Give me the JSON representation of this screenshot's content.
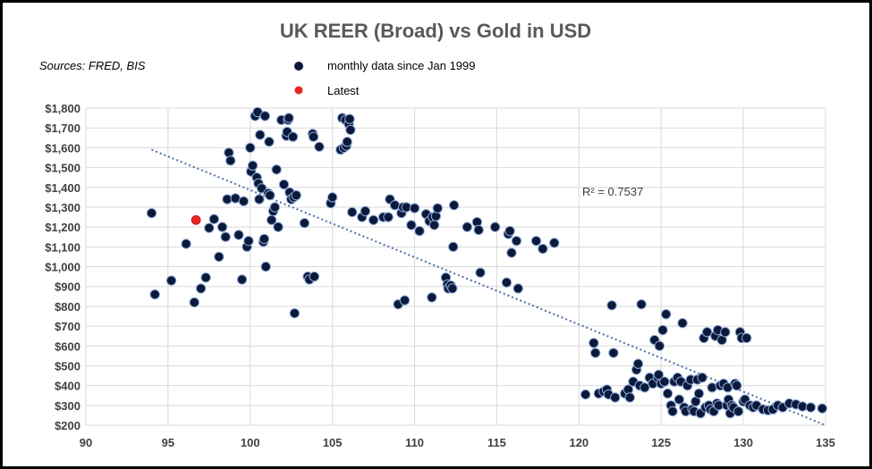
{
  "chart_data": {
    "type": "scatter",
    "title": "UK REER (Broad) vs Gold in USD",
    "source": "Sources: FRED, BIS",
    "legend": [
      {
        "label": "monthly data since Jan 1999",
        "color": "#0b1a3a"
      },
      {
        "label": "Latest",
        "color": "#e8251f"
      }
    ],
    "legend_position": "top-center",
    "grid": true,
    "xlim": [
      90,
      135
    ],
    "ylim": [
      200,
      1800
    ],
    "x_ticks": [
      "90",
      "95",
      "100",
      "105",
      "110",
      "115",
      "120",
      "125",
      "130",
      "135"
    ],
    "y_ticks": [
      "$200",
      "$300",
      "$400",
      "$500",
      "$600",
      "$700",
      "$800",
      "$900",
      "$1,000",
      "$1,100",
      "$1,200",
      "$1,300",
      "$1,400",
      "$1,500",
      "$1,600",
      "$1,700",
      "$1,800"
    ],
    "annotation": "R² = 0.7537",
    "trendline": [
      [
        94,
        1590
      ],
      [
        135,
        200
      ]
    ],
    "latest": [
      96.7,
      1235
    ],
    "points": [
      [
        94,
        1270
      ],
      [
        94.2,
        860
      ],
      [
        95.2,
        930
      ],
      [
        96.1,
        1115
      ],
      [
        96.6,
        820
      ],
      [
        97,
        890
      ],
      [
        97.3,
        945
      ],
      [
        97.5,
        1195
      ],
      [
        97.8,
        1240
      ],
      [
        98.1,
        1050
      ],
      [
        98.3,
        1200
      ],
      [
        98.5,
        1150
      ],
      [
        98.6,
        1340
      ],
      [
        98.7,
        1575
      ],
      [
        98.8,
        1535
      ],
      [
        99.1,
        1345
      ],
      [
        99.3,
        1160
      ],
      [
        99.5,
        935
      ],
      [
        99.6,
        1330
      ],
      [
        99.8,
        1100
      ],
      [
        99.9,
        1130
      ],
      [
        100,
        1600
      ],
      [
        100.05,
        1480
      ],
      [
        100.15,
        1510
      ],
      [
        100.3,
        1760
      ],
      [
        100.4,
        1450
      ],
      [
        100.45,
        1780
      ],
      [
        100.5,
        1420
      ],
      [
        100.55,
        1340
      ],
      [
        100.6,
        1665
      ],
      [
        100.7,
        1395
      ],
      [
        100.8,
        1125
      ],
      [
        100.85,
        1140
      ],
      [
        100.9,
        1760
      ],
      [
        100.95,
        1000
      ],
      [
        101.1,
        1370
      ],
      [
        101.15,
        1630
      ],
      [
        101.2,
        1360
      ],
      [
        101.3,
        1235
      ],
      [
        101.4,
        1280
      ],
      [
        101.5,
        1300
      ],
      [
        101.6,
        1490
      ],
      [
        101.7,
        1200
      ],
      [
        101.9,
        1740
      ],
      [
        102.05,
        1415
      ],
      [
        102.2,
        1660
      ],
      [
        102.25,
        1680
      ],
      [
        102.3,
        1740
      ],
      [
        102.35,
        1750
      ],
      [
        102.4,
        1375
      ],
      [
        102.5,
        1340
      ],
      [
        102.6,
        1655
      ],
      [
        102.65,
        1350
      ],
      [
        102.7,
        765
      ],
      [
        102.8,
        1360
      ],
      [
        103.3,
        1220
      ],
      [
        103.5,
        950
      ],
      [
        103.6,
        935
      ],
      [
        103.8,
        1670
      ],
      [
        103.85,
        1655
      ],
      [
        103.9,
        950
      ],
      [
        104.2,
        1605
      ],
      [
        104.9,
        1320
      ],
      [
        105,
        1350
      ],
      [
        105.5,
        1590
      ],
      [
        105.6,
        1750
      ],
      [
        105.7,
        1600
      ],
      [
        105.8,
        1740
      ],
      [
        105.85,
        1610
      ],
      [
        105.9,
        1630
      ],
      [
        106,
        1720
      ],
      [
        106.05,
        1745
      ],
      [
        106.1,
        1690
      ],
      [
        106.2,
        1275
      ],
      [
        106.8,
        1250
      ],
      [
        107,
        1280
      ],
      [
        107.5,
        1235
      ],
      [
        108.1,
        1250
      ],
      [
        108.4,
        1250
      ],
      [
        108.5,
        1340
      ],
      [
        108.8,
        1310
      ],
      [
        109,
        810
      ],
      [
        109.2,
        1270
      ],
      [
        109.3,
        1300
      ],
      [
        109.4,
        830
      ],
      [
        109.5,
        1300
      ],
      [
        109.8,
        1210
      ],
      [
        110,
        1295
      ],
      [
        110.3,
        1180
      ],
      [
        110.7,
        1265
      ],
      [
        110.9,
        1230
      ],
      [
        111.05,
        845
      ],
      [
        111.1,
        1250
      ],
      [
        111.2,
        1210
      ],
      [
        111.3,
        1255
      ],
      [
        111.4,
        1295
      ],
      [
        111.9,
        945
      ],
      [
        112,
        910
      ],
      [
        112.05,
        890
      ],
      [
        112.2,
        905
      ],
      [
        112.3,
        890
      ],
      [
        112.35,
        1100
      ],
      [
        112.4,
        1310
      ],
      [
        113.2,
        1200
      ],
      [
        113.8,
        1225
      ],
      [
        113.9,
        1185
      ],
      [
        114,
        970
      ],
      [
        114.9,
        1200
      ],
      [
        115.6,
        920
      ],
      [
        115.7,
        1165
      ],
      [
        115.8,
        1180
      ],
      [
        115.9,
        1070
      ],
      [
        116.2,
        1130
      ],
      [
        116.3,
        890
      ],
      [
        117.4,
        1130
      ],
      [
        117.8,
        1090
      ],
      [
        118.5,
        1120
      ],
      [
        120.4,
        355
      ],
      [
        120.9,
        615
      ],
      [
        121,
        565
      ],
      [
        121.2,
        360
      ],
      [
        121.5,
        370
      ],
      [
        121.7,
        380
      ],
      [
        121.8,
        355
      ],
      [
        122,
        805
      ],
      [
        122.1,
        565
      ],
      [
        122.2,
        340
      ],
      [
        122.8,
        360
      ],
      [
        123,
        380
      ],
      [
        123.1,
        340
      ],
      [
        123.3,
        420
      ],
      [
        123.5,
        480
      ],
      [
        123.6,
        510
      ],
      [
        123.7,
        400
      ],
      [
        123.8,
        810
      ],
      [
        124,
        390
      ],
      [
        124.3,
        440
      ],
      [
        124.5,
        410
      ],
      [
        124.6,
        630
      ],
      [
        124.8,
        440
      ],
      [
        124.85,
        455
      ],
      [
        124.9,
        600
      ],
      [
        125,
        410
      ],
      [
        125.1,
        680
      ],
      [
        125.2,
        420
      ],
      [
        125.3,
        760
      ],
      [
        125.4,
        360
      ],
      [
        125.6,
        300
      ],
      [
        125.7,
        270
      ],
      [
        125.8,
        420
      ],
      [
        126,
        440
      ],
      [
        126.1,
        330
      ],
      [
        126.2,
        420
      ],
      [
        126.3,
        715
      ],
      [
        126.4,
        290
      ],
      [
        126.5,
        270
      ],
      [
        126.6,
        400
      ],
      [
        126.8,
        430
      ],
      [
        126.9,
        280
      ],
      [
        127,
        270
      ],
      [
        127.1,
        320
      ],
      [
        127.2,
        430
      ],
      [
        127.3,
        360
      ],
      [
        127.4,
        260
      ],
      [
        127.5,
        440
      ],
      [
        127.6,
        640
      ],
      [
        127.7,
        290
      ],
      [
        127.8,
        670
      ],
      [
        127.9,
        300
      ],
      [
        128,
        280
      ],
      [
        128.1,
        390
      ],
      [
        128.2,
        270
      ],
      [
        128.3,
        650
      ],
      [
        128.4,
        310
      ],
      [
        128.45,
        680
      ],
      [
        128.5,
        300
      ],
      [
        128.6,
        400
      ],
      [
        128.7,
        630
      ],
      [
        128.8,
        410
      ],
      [
        128.9,
        670
      ],
      [
        129,
        300
      ],
      [
        129.05,
        390
      ],
      [
        129.1,
        330
      ],
      [
        129.2,
        260
      ],
      [
        129.3,
        300
      ],
      [
        129.4,
        290
      ],
      [
        129.5,
        410
      ],
      [
        129.6,
        400
      ],
      [
        129.7,
        270
      ],
      [
        129.8,
        670
      ],
      [
        129.9,
        640
      ],
      [
        130,
        320
      ],
      [
        130.1,
        330
      ],
      [
        130.2,
        640
      ],
      [
        130.4,
        300
      ],
      [
        130.6,
        290
      ],
      [
        130.8,
        300
      ],
      [
        131.2,
        280
      ],
      [
        131.5,
        275
      ],
      [
        131.8,
        280
      ],
      [
        132.1,
        300
      ],
      [
        132.4,
        290
      ],
      [
        132.8,
        310
      ],
      [
        133.2,
        305
      ],
      [
        133.6,
        295
      ],
      [
        134.1,
        290
      ],
      [
        134.8,
        285
      ]
    ]
  }
}
